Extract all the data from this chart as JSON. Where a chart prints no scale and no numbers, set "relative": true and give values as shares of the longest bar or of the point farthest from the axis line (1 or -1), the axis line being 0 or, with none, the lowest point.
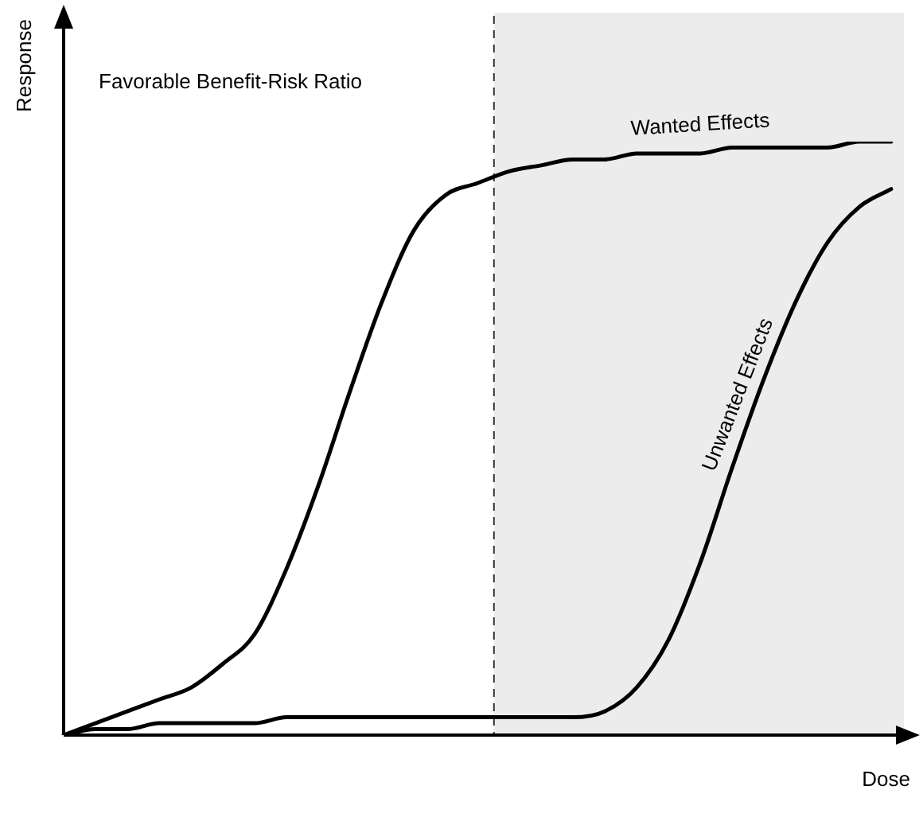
{
  "chart_data": {
    "type": "line",
    "relative": true,
    "xlabel": "Dose",
    "ylabel": "Response",
    "annotations": [
      "Favorable Benefit-Risk Ratio"
    ],
    "categories": [
      null,
      null,
      null,
      null,
      null,
      null,
      null,
      null,
      null,
      null,
      null,
      null,
      null,
      null,
      null,
      null,
      null,
      null,
      null,
      null,
      null,
      null,
      null,
      null,
      null,
      null,
      null
    ],
    "series": [
      {
        "name": "Wanted Effects",
        "color": "#000000",
        "values": [
          0,
          0.02,
          0.04,
          0.06,
          0.08,
          0.12,
          0.17,
          0.28,
          0.42,
          0.58,
          0.73,
          0.85,
          0.91,
          0.93,
          0.95,
          0.96,
          0.97,
          0.97,
          0.98,
          0.98,
          0.98,
          0.99,
          0.99,
          0.99,
          0.99,
          1,
          1
        ]
      },
      {
        "name": "Unwanted Effects",
        "color": "#000000",
        "values": [
          0,
          0.01,
          0.01,
          0.02,
          0.02,
          0.02,
          0.02,
          0.03,
          0.03,
          0.03,
          0.03,
          0.03,
          0.03,
          0.03,
          0.03,
          0.03,
          0.03,
          0.04,
          0.08,
          0.16,
          0.29,
          0.45,
          0.6,
          0.73,
          0.83,
          0.89,
          0.92
        ]
      }
    ],
    "grid": false,
    "legend": false,
    "marker": "none",
    "line_style": "solid"
  }
}
